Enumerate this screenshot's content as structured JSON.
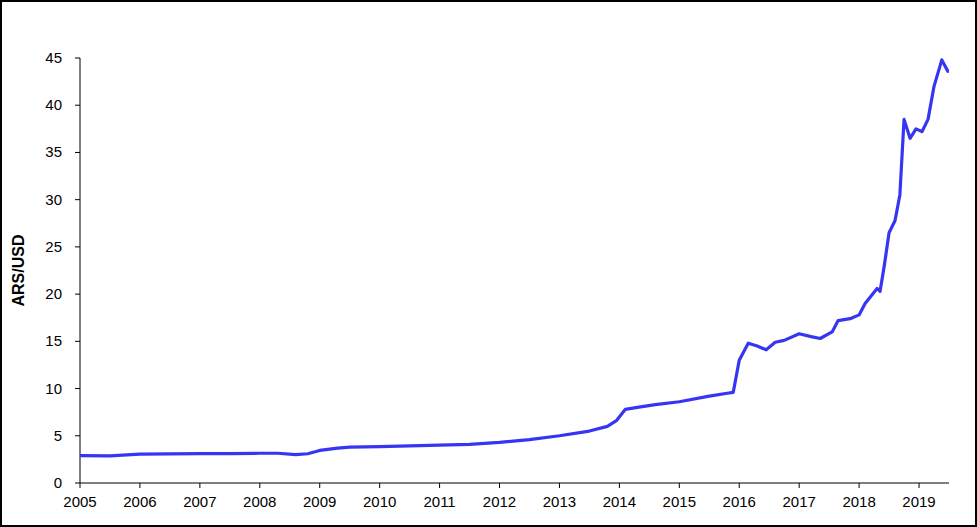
{
  "chart_data": {
    "type": "line",
    "y_label": "ARS/USD",
    "color": "#3636f2",
    "x": [
      2005,
      2005.5,
      2006,
      2006.5,
      2007,
      2007.5,
      2008,
      2008.3,
      2008.6,
      2008.8,
      2009,
      2009.3,
      2009.5,
      2010,
      2010.5,
      2011,
      2011.5,
      2012,
      2012.5,
      2013,
      2013.5,
      2013.8,
      2013.95,
      2014.1,
      2014.3,
      2014.6,
      2015,
      2015.5,
      2015.8,
      2015.9,
      2016,
      2016.15,
      2016.3,
      2016.45,
      2016.6,
      2016.75,
      2017,
      2017.2,
      2017.35,
      2017.55,
      2017.65,
      2017.85,
      2018,
      2018.1,
      2018.3,
      2018.35,
      2018.42,
      2018.5,
      2018.6,
      2018.68,
      2018.75,
      2018.85,
      2018.95,
      2019.05,
      2019.15,
      2019.25,
      2019.38,
      2019.48
    ],
    "values": [
      2.9,
      2.88,
      3.05,
      3.08,
      3.1,
      3.12,
      3.15,
      3.15,
      3.0,
      3.1,
      3.45,
      3.7,
      3.8,
      3.85,
      3.93,
      4.0,
      4.1,
      4.3,
      4.6,
      5.0,
      5.5,
      6.0,
      6.6,
      7.8,
      8.0,
      8.3,
      8.6,
      9.2,
      9.5,
      9.6,
      13.0,
      14.8,
      14.5,
      14.1,
      14.9,
      15.1,
      15.8,
      15.5,
      15.3,
      16.0,
      17.2,
      17.4,
      17.8,
      19.0,
      20.6,
      20.3,
      23.0,
      26.5,
      27.8,
      30.5,
      38.5,
      36.5,
      37.5,
      37.2,
      38.5,
      42.0,
      44.8,
      43.6
    ],
    "xlim": [
      2005,
      2019.5
    ],
    "xticks": [
      2005,
      2006,
      2007,
      2008,
      2009,
      2010,
      2011,
      2012,
      2013,
      2014,
      2015,
      2016,
      2017,
      2018,
      2019
    ],
    "ylim": [
      0,
      45
    ],
    "yticks": [
      0,
      5,
      10,
      15,
      20,
      25,
      30,
      35,
      40,
      45
    ],
    "grid": false
  }
}
